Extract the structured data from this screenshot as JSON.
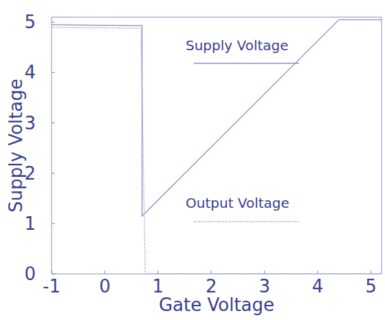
{
  "chart_data": {
    "type": "line",
    "x_label": "Gate Voltage",
    "y_label": "Supply Voltage",
    "xlim": [
      -1,
      5.2
    ],
    "ylim": [
      0,
      5.1
    ],
    "xticks": [
      -1,
      0,
      1,
      2,
      3,
      4,
      5
    ],
    "yticks": [
      0,
      1,
      2,
      3,
      4,
      5
    ],
    "grid": false,
    "series": [
      {
        "name": "Supply Voltage",
        "color": "#8a8cc0",
        "line_style": "solid",
        "x": [
          -1,
          0.7,
          0.7,
          4.4,
          5.2
        ],
        "values": [
          4.95,
          4.93,
          1.15,
          5.05,
          5.05
        ]
      },
      {
        "name": "Output Voltage",
        "color": "#8a8cc0",
        "line_style": "dotted",
        "x": [
          -1,
          0.68,
          0.76,
          5.2
        ],
        "values": [
          4.9,
          4.88,
          0,
          0
        ]
      }
    ]
  }
}
